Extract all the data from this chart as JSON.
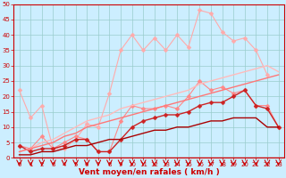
{
  "x": [
    0,
    1,
    2,
    3,
    4,
    5,
    6,
    7,
    8,
    9,
    10,
    11,
    12,
    13,
    14,
    15,
    16,
    17,
    18,
    19,
    20,
    21,
    22,
    23
  ],
  "series": [
    {
      "color": "#ffaaaa",
      "linewidth": 0.8,
      "markersize": 2.5,
      "marker": "D",
      "values": [
        22,
        13,
        17,
        3,
        3,
        6,
        11,
        10,
        21,
        35,
        40,
        35,
        39,
        35,
        40,
        36,
        48,
        47,
        41,
        38,
        39,
        35,
        27,
        null
      ]
    },
    {
      "color": "#ff8888",
      "linewidth": 0.8,
      "markersize": 2.5,
      "marker": "D",
      "values": [
        4,
        3,
        7,
        3,
        5,
        7,
        6,
        2,
        2,
        12,
        17,
        16,
        16,
        17,
        16,
        20,
        25,
        22,
        23,
        21,
        22,
        17,
        17,
        10
      ]
    },
    {
      "color": "#cc2222",
      "linewidth": 1.0,
      "markersize": 2.5,
      "marker": "D",
      "values": [
        4,
        2,
        3,
        3,
        4,
        6,
        6,
        2,
        2,
        6,
        10,
        12,
        13,
        14,
        14,
        15,
        17,
        18,
        18,
        20,
        22,
        17,
        16,
        10
      ]
    },
    {
      "color": "#ffbbbb",
      "linewidth": 1.0,
      "markersize": 0,
      "marker": "None",
      "values": [
        2,
        3,
        5,
        6,
        8,
        10,
        12,
        13,
        14,
        16,
        17,
        18,
        19,
        20,
        21,
        22,
        24,
        25,
        26,
        27,
        28,
        29,
        30,
        28
      ]
    },
    {
      "color": "#ff7777",
      "linewidth": 1.0,
      "markersize": 0,
      "marker": "None",
      "values": [
        2,
        3,
        4,
        5,
        7,
        8,
        10,
        11,
        12,
        13,
        14,
        15,
        16,
        17,
        18,
        19,
        20,
        21,
        22,
        23,
        24,
        25,
        26,
        27
      ]
    },
    {
      "color": "#aa0000",
      "linewidth": 1.0,
      "markersize": 0,
      "marker": "None",
      "values": [
        1,
        1,
        2,
        2,
        3,
        4,
        4,
        5,
        6,
        6,
        7,
        8,
        9,
        9,
        10,
        10,
        11,
        12,
        12,
        13,
        13,
        13,
        10,
        10
      ]
    }
  ],
  "ylim": [
    0,
    50
  ],
  "yticks": [
    0,
    5,
    10,
    15,
    20,
    25,
    30,
    35,
    40,
    45,
    50
  ],
  "xlim": [
    -0.5,
    23.5
  ],
  "xticks": [
    0,
    1,
    2,
    3,
    4,
    5,
    6,
    7,
    8,
    9,
    10,
    11,
    12,
    13,
    14,
    15,
    16,
    17,
    18,
    19,
    20,
    21,
    22,
    23
  ],
  "xlabel": "Vent moyen/en rafales ( km/h )",
  "xlabel_color": "#cc0000",
  "xlabel_fontsize": 6.5,
  "bg_color": "#cceeff",
  "grid_color": "#99cccc",
  "tick_color": "#cc0000",
  "tick_fontsize": 5.0,
  "arrow_color": "#cc0000"
}
